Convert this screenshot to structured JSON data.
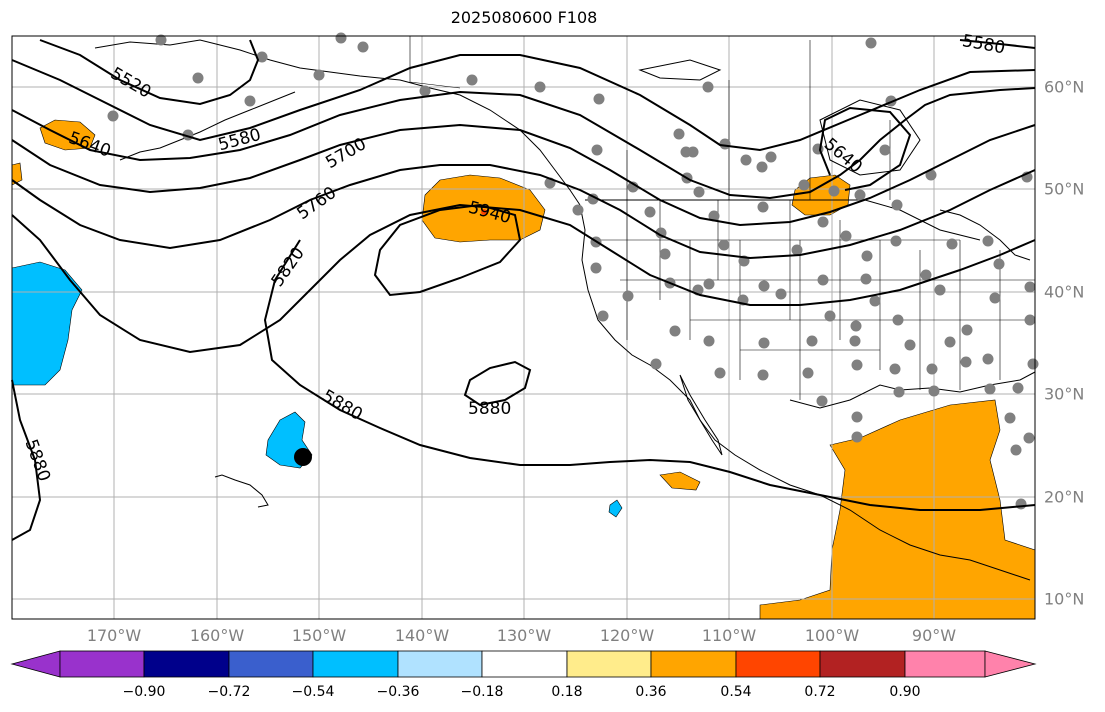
{
  "title": "2025080600 F108",
  "lon_labels": [
    "170°W",
    "160°W",
    "150°W",
    "140°W",
    "130°W",
    "120°W",
    "110°W",
    "100°W",
    "90°W"
  ],
  "lat_labels": [
    "60°N",
    "50°N",
    "40°N",
    "30°N",
    "20°N",
    "10°N"
  ],
  "contour_labels": [
    "5520",
    "5580",
    "5580",
    "5640",
    "5640",
    "5700",
    "5760",
    "5820",
    "5880",
    "5880",
    "5880",
    "5940"
  ],
  "colorbar": {
    "ticks": [
      "−0.90",
      "−0.72",
      "−0.54",
      "−0.36",
      "−0.18",
      "0.18",
      "0.36",
      "0.54",
      "0.72",
      "0.90"
    ],
    "colors": [
      "#9932cc",
      "#00008b",
      "#3a5fcd",
      "#00bfff",
      "#b0e2ff",
      "#ffffff",
      "#ffec8b",
      "#ffa500",
      "#ff4500",
      "#b22222",
      "#ff82ab"
    ]
  },
  "colors": {
    "positive_fill": "#ffa500",
    "negative_fill": "#00bfff",
    "station_dot": "#808080",
    "grid": "#b0b0b0"
  }
}
